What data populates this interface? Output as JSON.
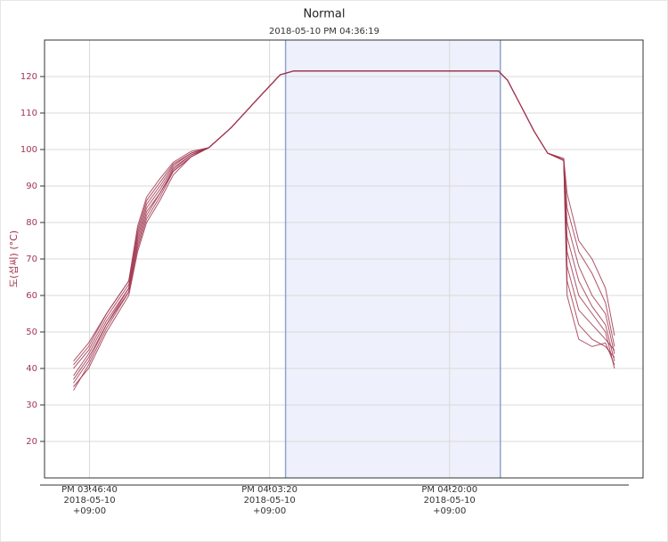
{
  "chart_data": {
    "type": "line",
    "title": "Normal",
    "subtitle": "2018-05-10 PM 04:36:19",
    "y_label": "도(섭씨) (°C)",
    "x": [
      56711,
      56795,
      56894,
      57018,
      57067,
      57117,
      57191,
      57265,
      57364,
      57463,
      57587,
      57736,
      57859,
      57934,
      59072,
      59122,
      59196,
      59270,
      59345,
      59434,
      59453,
      59518,
      59592,
      59666,
      59716
    ],
    "xlim": [
      56550,
      59875
    ],
    "xticks": [
      {
        "value": 56800,
        "label": "PM 03:46:40\n2018-05-10\n+09:00"
      },
      {
        "value": 57800,
        "label": "PM 04:03:20\n2018-05-10\n+09:00"
      },
      {
        "value": 58800,
        "label": "PM 04:20:00\n2018-05-10\n+09:00"
      }
    ],
    "ylim": [
      10,
      130
    ],
    "yticks": [
      20,
      30,
      40,
      50,
      60,
      70,
      80,
      90,
      100,
      110,
      120
    ],
    "grid": true,
    "highlight_range": [
      57889,
      59082
    ],
    "series": [
      {
        "color": "#a0364f",
        "values": [
          42,
          47,
          55,
          64,
          78,
          86,
          91,
          96,
          99,
          100.5,
          106,
          114,
          120.5,
          121.5,
          121.5,
          119,
          112,
          105,
          99,
          97.5,
          88,
          75,
          70,
          62,
          49
        ]
      },
      {
        "color": "#a0364f",
        "values": [
          40,
          45,
          54,
          63,
          77,
          85,
          90,
          95.5,
          99,
          100.5,
          106,
          114,
          120.5,
          121.5,
          121.5,
          119,
          112,
          105,
          99,
          97.5,
          84,
          72,
          66,
          58,
          46
        ]
      },
      {
        "color": "#a0364f",
        "values": [
          38,
          44,
          53,
          62,
          76,
          84,
          89,
          95,
          98.5,
          100.5,
          106,
          114,
          120.5,
          121.5,
          121.5,
          119,
          112,
          105,
          99,
          97,
          80,
          68,
          60,
          55,
          44
        ]
      },
      {
        "color": "#a0364f",
        "values": [
          36,
          42,
          52,
          62,
          75,
          83,
          88,
          94.5,
          98.5,
          100.5,
          106,
          114,
          120.5,
          121.5,
          121.5,
          119,
          112,
          105,
          99,
          97,
          76,
          64,
          57,
          52,
          42
        ]
      },
      {
        "color": "#a0364f",
        "values": [
          34,
          41,
          51,
          61,
          74,
          82,
          88,
          94,
          98,
          100.5,
          106,
          114,
          120.5,
          121.5,
          121.5,
          119,
          112,
          105,
          99,
          97,
          72,
          60,
          55,
          50,
          40
        ]
      },
      {
        "color": "#a0364f",
        "values": [
          41,
          46,
          55,
          64,
          79,
          87,
          92,
          96.5,
          99.5,
          100.5,
          106,
          114,
          120.5,
          121.5,
          121.5,
          119,
          112,
          105,
          99,
          97.5,
          68,
          56,
          52,
          48,
          45
        ]
      },
      {
        "color": "#a0364f",
        "values": [
          37,
          43,
          52,
          61,
          73,
          81,
          87,
          94,
          98,
          100.5,
          106,
          114,
          120.5,
          121.5,
          121.5,
          119,
          112,
          105,
          99,
          97,
          64,
          52,
          48,
          46,
          43
        ]
      },
      {
        "color": "#a0364f",
        "values": [
          35,
          40,
          50,
          60,
          72,
          80,
          86,
          93,
          98,
          100.5,
          106,
          114,
          120.5,
          121.5,
          121.5,
          119,
          112,
          105,
          99,
          97,
          60,
          48,
          46,
          47,
          41
        ]
      }
    ]
  }
}
